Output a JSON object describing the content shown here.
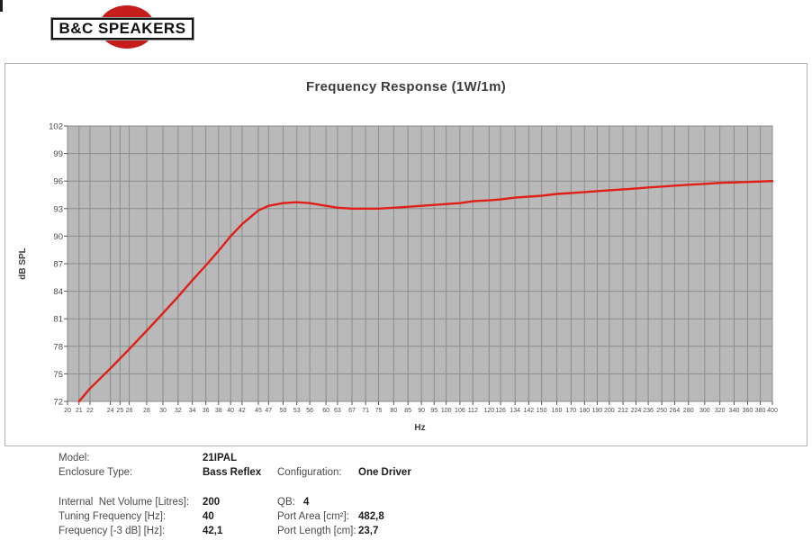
{
  "logo": {
    "text": "B&C SPEAKERS",
    "red": "#c41d1a"
  },
  "chart_data": {
    "type": "line",
    "title": "Frequency Response (1W/1m)",
    "xlabel": "Hz",
    "ylabel": "dB SPL",
    "x_scale": "log",
    "xlim": [
      20,
      400
    ],
    "ylim": [
      72,
      102
    ],
    "y_ticks": [
      102,
      99,
      96,
      93,
      90,
      87,
      84,
      81,
      78,
      75,
      72
    ],
    "x_ticks": [
      20,
      21,
      22,
      24,
      25,
      26,
      28,
      30,
      32,
      34,
      36,
      38,
      40,
      42,
      45,
      47,
      50,
      53,
      56,
      60,
      63,
      67,
      71,
      75,
      80,
      85,
      90,
      95,
      100,
      106,
      112,
      120,
      126,
      134,
      142,
      150,
      160,
      170,
      180,
      190,
      200,
      212,
      224,
      236,
      250,
      264,
      280,
      300,
      320,
      340,
      360,
      380,
      400
    ],
    "grid": true,
    "legend_position": "none",
    "plot_bg": "#b9b9b9",
    "grid_color": "#8c8c8c",
    "series": [
      {
        "name": "SPL",
        "color": "#df1f18",
        "points": [
          [
            21,
            72.0
          ],
          [
            22,
            73.4
          ],
          [
            24,
            75.6
          ],
          [
            26,
            77.7
          ],
          [
            28,
            79.7
          ],
          [
            30,
            81.6
          ],
          [
            32,
            83.4
          ],
          [
            34,
            85.2
          ],
          [
            36,
            86.8
          ],
          [
            38,
            88.4
          ],
          [
            40,
            90.0
          ],
          [
            42,
            91.3
          ],
          [
            45,
            92.8
          ],
          [
            47,
            93.3
          ],
          [
            50,
            93.6
          ],
          [
            53,
            93.7
          ],
          [
            56,
            93.6
          ],
          [
            60,
            93.3
          ],
          [
            63,
            93.1
          ],
          [
            67,
            93.0
          ],
          [
            71,
            93.0
          ],
          [
            75,
            93.0
          ],
          [
            80,
            93.1
          ],
          [
            85,
            93.2
          ],
          [
            90,
            93.3
          ],
          [
            95,
            93.4
          ],
          [
            100,
            93.5
          ],
          [
            106,
            93.6
          ],
          [
            112,
            93.8
          ],
          [
            120,
            93.9
          ],
          [
            126,
            94.0
          ],
          [
            134,
            94.2
          ],
          [
            142,
            94.3
          ],
          [
            150,
            94.4
          ],
          [
            160,
            94.6
          ],
          [
            170,
            94.7
          ],
          [
            180,
            94.8
          ],
          [
            190,
            94.9
          ],
          [
            200,
            95.0
          ],
          [
            212,
            95.1
          ],
          [
            224,
            95.2
          ],
          [
            236,
            95.3
          ],
          [
            250,
            95.4
          ],
          [
            264,
            95.5
          ],
          [
            280,
            95.6
          ],
          [
            300,
            95.7
          ],
          [
            320,
            95.8
          ],
          [
            340,
            95.85
          ],
          [
            360,
            95.9
          ],
          [
            380,
            95.95
          ],
          [
            400,
            96.0
          ]
        ]
      }
    ]
  },
  "specs": {
    "rows": [
      {
        "l_label": "Model:",
        "l_value": "21IPAL"
      },
      {
        "l_label": "Enclosure Type:",
        "l_value": "Bass Reflex",
        "r_label": "Configuration:",
        "r_value": "One Driver"
      },
      {
        "spacer": true
      },
      {
        "l_label": "Internal  Net Volume [Litres]:",
        "l_value": "200",
        "r_label": "QB:",
        "r_value": "4",
        "r_narrow": true
      },
      {
        "l_label": "Tuning Frequency [Hz]:",
        "l_value": "40",
        "r_label": "Port Area [cm²]:",
        "r_value": "482,8"
      },
      {
        "l_label": "Frequency [-3 dB] [Hz]:",
        "l_value": "42,1",
        "r_label": "Port Length [cm]:",
        "r_value": "23,7"
      }
    ]
  }
}
